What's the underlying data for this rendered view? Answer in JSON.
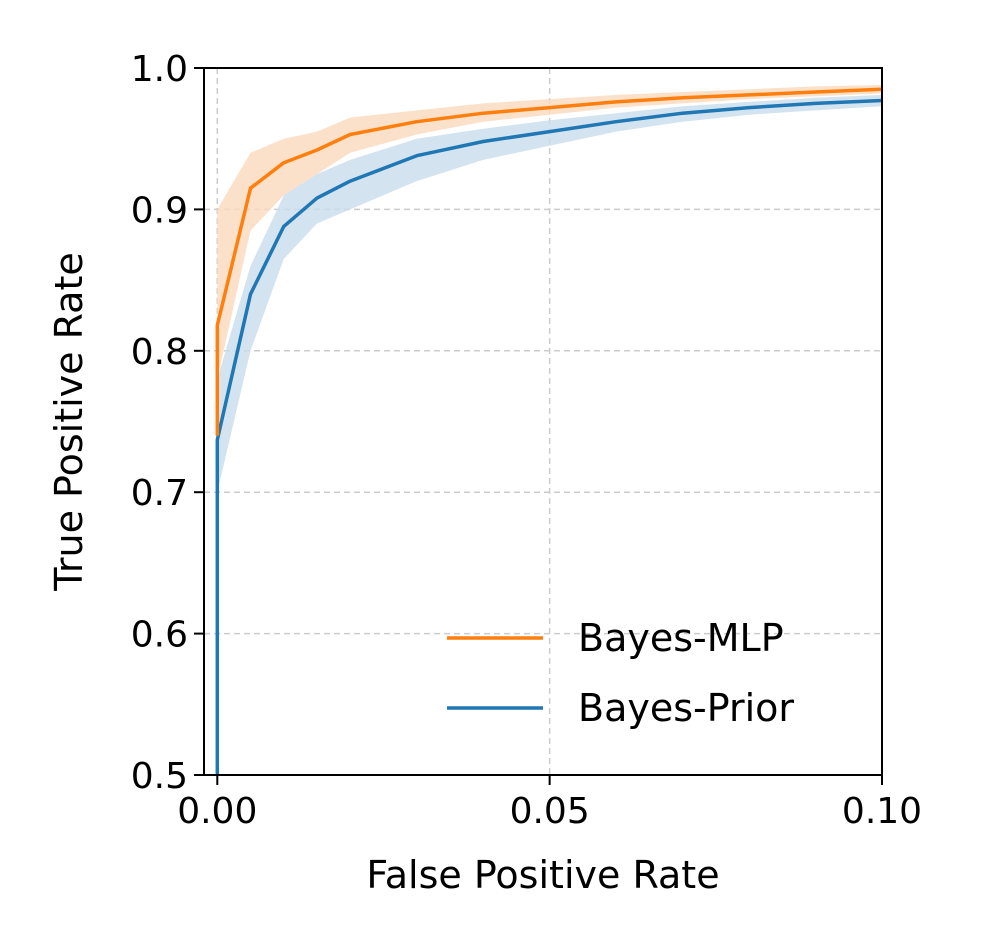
{
  "chart_data": {
    "type": "line",
    "title": "",
    "xlabel": "False Positive Rate",
    "ylabel": "True Positive Rate",
    "xlim": [
      -0.002,
      0.1
    ],
    "ylim": [
      0.5,
      1.0
    ],
    "xticks": [
      0.0,
      0.05,
      0.1
    ],
    "xtick_labels": [
      "0.00",
      "0.05",
      "0.10"
    ],
    "yticks": [
      0.5,
      0.6,
      0.7,
      0.8,
      0.9,
      1.0
    ],
    "ytick_labels": [
      "0.5",
      "0.6",
      "0.7",
      "0.8",
      "0.9",
      "1.0"
    ],
    "grid": true,
    "legend_position": "lower-right",
    "series": [
      {
        "name": "Bayes-MLP",
        "color": "#ff7f0e",
        "band_color": "#fbd9bd",
        "x": [
          0.0,
          0.0,
          0.005,
          0.01,
          0.015,
          0.02,
          0.03,
          0.04,
          0.05,
          0.06,
          0.07,
          0.08,
          0.09,
          0.1
        ],
        "y": [
          0.74,
          0.818,
          0.915,
          0.933,
          0.942,
          0.953,
          0.962,
          0.968,
          0.972,
          0.976,
          0.979,
          0.981,
          0.983,
          0.985
        ],
        "y_lower": [
          0.72,
          0.78,
          0.885,
          0.91,
          0.925,
          0.94,
          0.953,
          0.962,
          0.967,
          0.972,
          0.975,
          0.978,
          0.98,
          0.982
        ],
        "y_upper": [
          0.82,
          0.9,
          0.94,
          0.95,
          0.955,
          0.965,
          0.97,
          0.975,
          0.978,
          0.981,
          0.983,
          0.985,
          0.987,
          0.988
        ]
      },
      {
        "name": "Bayes-Prior",
        "color": "#1f77b4",
        "band_color": "#c9dcec",
        "x": [
          0.0,
          0.0,
          0.005,
          0.01,
          0.015,
          0.02,
          0.03,
          0.04,
          0.05,
          0.06,
          0.07,
          0.08,
          0.09,
          0.1
        ],
        "y": [
          0.5,
          0.737,
          0.84,
          0.888,
          0.908,
          0.92,
          0.938,
          0.948,
          0.955,
          0.962,
          0.968,
          0.972,
          0.975,
          0.977
        ],
        "y_lower": [
          0.5,
          0.7,
          0.8,
          0.865,
          0.89,
          0.9,
          0.92,
          0.935,
          0.945,
          0.955,
          0.962,
          0.967,
          0.97,
          0.973
        ],
        "y_upper": [
          0.5,
          0.78,
          0.86,
          0.91,
          0.925,
          0.935,
          0.95,
          0.957,
          0.963,
          0.968,
          0.973,
          0.976,
          0.979,
          0.981
        ]
      }
    ]
  }
}
